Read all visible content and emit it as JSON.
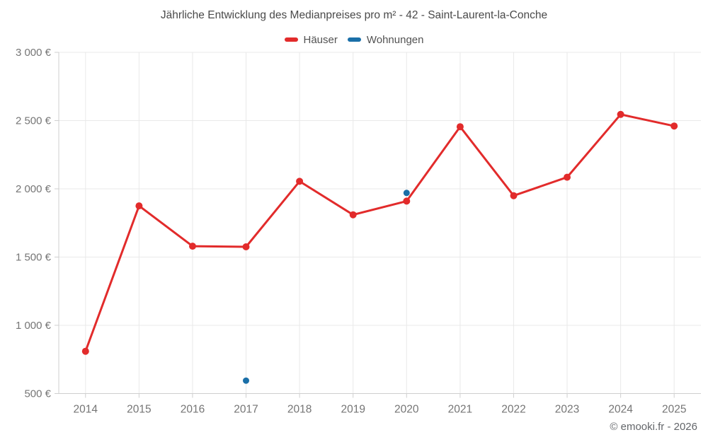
{
  "footer_credit": "© emooki.fr - 2026",
  "chart_data": {
    "type": "line",
    "title": "Jährliche Entwicklung des Medianpreises pro m² - 42 - Saint-Laurent-la-Conche",
    "categories": [
      "2014",
      "2015",
      "2016",
      "2017",
      "2018",
      "2019",
      "2020",
      "2021",
      "2022",
      "2023",
      "2024",
      "2025"
    ],
    "series": [
      {
        "name": "Häuser",
        "type": "line",
        "color": "#e22b2b",
        "values": [
          810,
          1875,
          1580,
          1575,
          2055,
          1810,
          1910,
          2455,
          1950,
          2085,
          2545,
          2460
        ]
      },
      {
        "name": "Wohnungen",
        "type": "scatter",
        "color": "#1a6fa8",
        "values": [
          null,
          null,
          null,
          595,
          null,
          null,
          1970,
          null,
          null,
          null,
          null,
          null
        ]
      }
    ],
    "xlabel": "",
    "ylabel": "",
    "ylim": [
      500,
      3000
    ],
    "yticks": [
      500,
      1000,
      1500,
      2000,
      2500,
      3000
    ],
    "ytick_labels": [
      "500 €",
      "1 000 €",
      "1 500 €",
      "2 000 €",
      "2 500 €",
      "3 000 €"
    ],
    "ytick_suffix": "€",
    "grid": true,
    "legend_position": "top"
  }
}
